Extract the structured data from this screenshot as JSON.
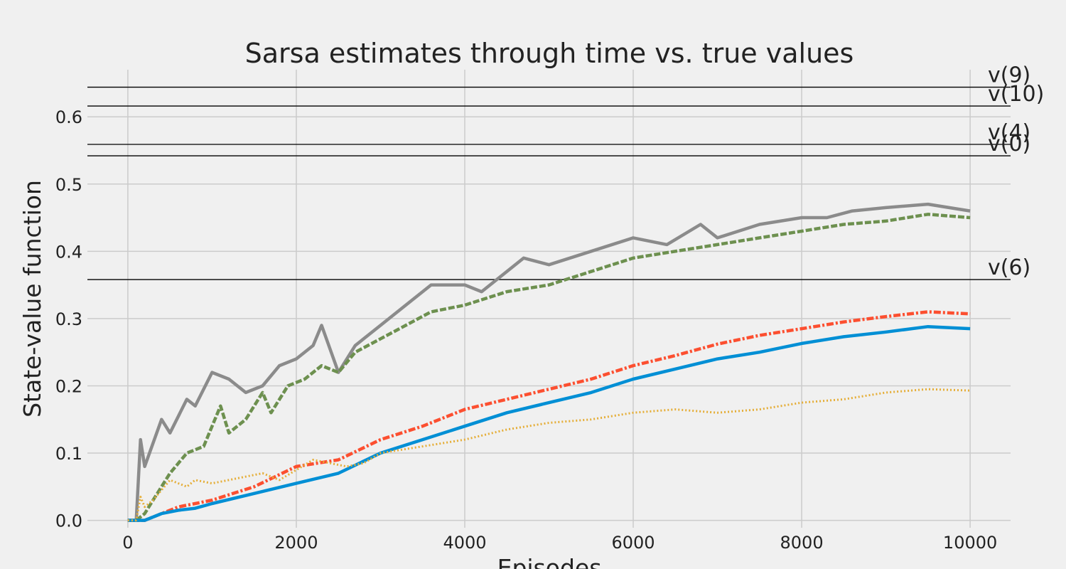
{
  "chart_data": {
    "type": "line",
    "title": "Sarsa estimates through time vs. true values",
    "xlabel": "Episodes",
    "ylabel": "State-value function",
    "xlim": [
      -480,
      10480
    ],
    "ylim": [
      -0.011,
      0.67
    ],
    "x_ticks": [
      0,
      2000,
      4000,
      6000,
      8000,
      10000
    ],
    "y_ticks": [
      0.0,
      0.1,
      0.2,
      0.3,
      0.4,
      0.5,
      0.6
    ],
    "x_tick_labels": [
      "0",
      "2000",
      "4000",
      "6000",
      "8000",
      "10000"
    ],
    "y_tick_labels": [
      "0.0",
      "0.1",
      "0.2",
      "0.3",
      "0.4",
      "0.5",
      "0.6"
    ],
    "grid": true,
    "reference_lines": [
      {
        "label": "v(9)",
        "value": 0.644
      },
      {
        "label": "v(10)",
        "value": 0.616
      },
      {
        "label": "v(4)",
        "value": 0.559
      },
      {
        "label": "v(0)",
        "value": 0.542
      },
      {
        "label": "v(6)",
        "value": 0.358
      }
    ],
    "series": [
      {
        "color": "#8b8b8b",
        "style": "solid",
        "x": [
          0,
          100,
          150,
          200,
          400,
          500,
          700,
          800,
          1000,
          1200,
          1400,
          1600,
          1800,
          2000,
          2200,
          2300,
          2500,
          2700,
          3000,
          3300,
          3600,
          4000,
          4200,
          4700,
          5000,
          5500,
          6000,
          6400,
          6800,
          7000,
          7500,
          8000,
          8300,
          8600,
          9000,
          9500,
          10000
        ],
        "y": [
          0.0,
          0.0,
          0.12,
          0.08,
          0.15,
          0.13,
          0.18,
          0.17,
          0.22,
          0.21,
          0.19,
          0.2,
          0.23,
          0.24,
          0.26,
          0.29,
          0.22,
          0.26,
          0.29,
          0.32,
          0.35,
          0.35,
          0.34,
          0.39,
          0.38,
          0.4,
          0.42,
          0.41,
          0.44,
          0.42,
          0.44,
          0.45,
          0.45,
          0.46,
          0.465,
          0.47,
          0.46
        ]
      },
      {
        "color": "#6d904f",
        "style": "dashed",
        "x": [
          0,
          100,
          200,
          300,
          500,
          700,
          900,
          1100,
          1200,
          1400,
          1600,
          1700,
          1900,
          2100,
          2300,
          2500,
          2700,
          3000,
          3300,
          3600,
          4000,
          4500,
          5000,
          5500,
          6000,
          6500,
          7000,
          7500,
          8000,
          8500,
          9000,
          9500,
          10000
        ],
        "y": [
          0.0,
          0.0,
          0.01,
          0.03,
          0.07,
          0.1,
          0.11,
          0.17,
          0.13,
          0.15,
          0.19,
          0.16,
          0.2,
          0.21,
          0.23,
          0.22,
          0.25,
          0.27,
          0.29,
          0.31,
          0.32,
          0.34,
          0.35,
          0.37,
          0.39,
          0.4,
          0.41,
          0.42,
          0.43,
          0.44,
          0.445,
          0.455,
          0.45
        ]
      },
      {
        "color": "#fc4f30",
        "style": "dashdot",
        "x": [
          0,
          200,
          400,
          600,
          800,
          1000,
          1500,
          2000,
          2500,
          3000,
          3500,
          4000,
          4500,
          5000,
          5500,
          6000,
          6500,
          7000,
          7500,
          8000,
          8500,
          9000,
          9500,
          10000
        ],
        "y": [
          0.0,
          0.0,
          0.01,
          0.02,
          0.025,
          0.03,
          0.05,
          0.08,
          0.09,
          0.12,
          0.14,
          0.165,
          0.18,
          0.195,
          0.21,
          0.23,
          0.245,
          0.262,
          0.275,
          0.285,
          0.295,
          0.303,
          0.31,
          0.307
        ]
      },
      {
        "color": "#008fd5",
        "style": "solid",
        "x": [
          0,
          200,
          400,
          600,
          800,
          1000,
          1500,
          2000,
          2500,
          3000,
          3500,
          4000,
          4500,
          5000,
          5500,
          6000,
          6500,
          7000,
          7500,
          8000,
          8500,
          9000,
          9500,
          10000
        ],
        "y": [
          0.0,
          0.0,
          0.01,
          0.015,
          0.018,
          0.025,
          0.04,
          0.055,
          0.07,
          0.1,
          0.12,
          0.14,
          0.16,
          0.175,
          0.19,
          0.21,
          0.225,
          0.24,
          0.25,
          0.263,
          0.273,
          0.28,
          0.288,
          0.285
        ]
      },
      {
        "color": "#e5ae38",
        "style": "dotted",
        "x": [
          0,
          100,
          150,
          200,
          300,
          500,
          700,
          800,
          1000,
          1200,
          1400,
          1600,
          1800,
          2000,
          2200,
          2400,
          2600,
          2800,
          3000,
          3500,
          4000,
          4500,
          5000,
          5500,
          6000,
          6500,
          7000,
          7500,
          8000,
          8500,
          9000,
          9500,
          10000
        ],
        "y": [
          0.0,
          0.0,
          0.035,
          0.02,
          0.03,
          0.06,
          0.05,
          0.06,
          0.055,
          0.06,
          0.065,
          0.07,
          0.06,
          0.075,
          0.09,
          0.085,
          0.08,
          0.085,
          0.1,
          0.11,
          0.12,
          0.135,
          0.145,
          0.15,
          0.16,
          0.165,
          0.16,
          0.165,
          0.175,
          0.18,
          0.19,
          0.195,
          0.193
        ]
      }
    ]
  }
}
